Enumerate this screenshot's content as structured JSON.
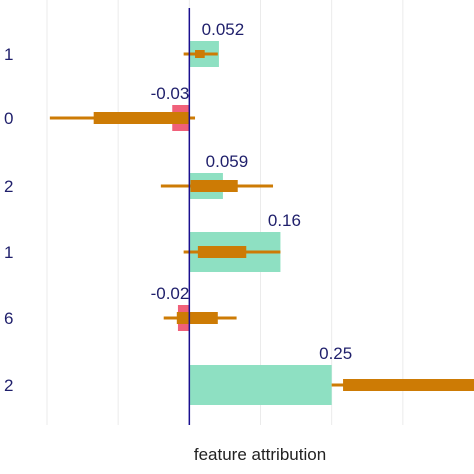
{
  "chart_data": {
    "type": "bar",
    "xlabel": "feature attribution",
    "xlim": [
      -0.25,
      0.5
    ],
    "x_gridlines": [
      -0.25,
      -0.125,
      0,
      0.125,
      0.25,
      0.375
    ],
    "grid": true,
    "categories": [
      "1",
      "0",
      "2",
      "1",
      "6",
      "2"
    ],
    "value_labels": [
      "0.052",
      "-0.03",
      "0.059",
      "0.16",
      "-0.02",
      "0.25"
    ],
    "values": [
      0.052,
      -0.03,
      0.059,
      0.16,
      -0.02,
      0.25
    ],
    "interval_outer": [
      [
        -0.01,
        0.05
      ],
      [
        -0.245,
        0.01
      ],
      [
        -0.05,
        0.147
      ],
      [
        -0.01,
        0.16
      ],
      [
        -0.045,
        0.083
      ],
      [
        0.25,
        0.53
      ]
    ],
    "interval_inner": [
      [
        0.01,
        0.027
      ],
      [
        -0.168,
        0
      ],
      [
        0.002,
        0.085
      ],
      [
        0.015,
        0.1
      ],
      [
        -0.022,
        0.05
      ],
      [
        0.27,
        0.53
      ]
    ],
    "colors": {
      "positive": "#8ee0c2",
      "negative": "#f0607a",
      "interval": "#cd7b05",
      "zero_line": "#1a0f8f",
      "grid": "#ebebeb",
      "text": "#1f1f6b"
    }
  }
}
